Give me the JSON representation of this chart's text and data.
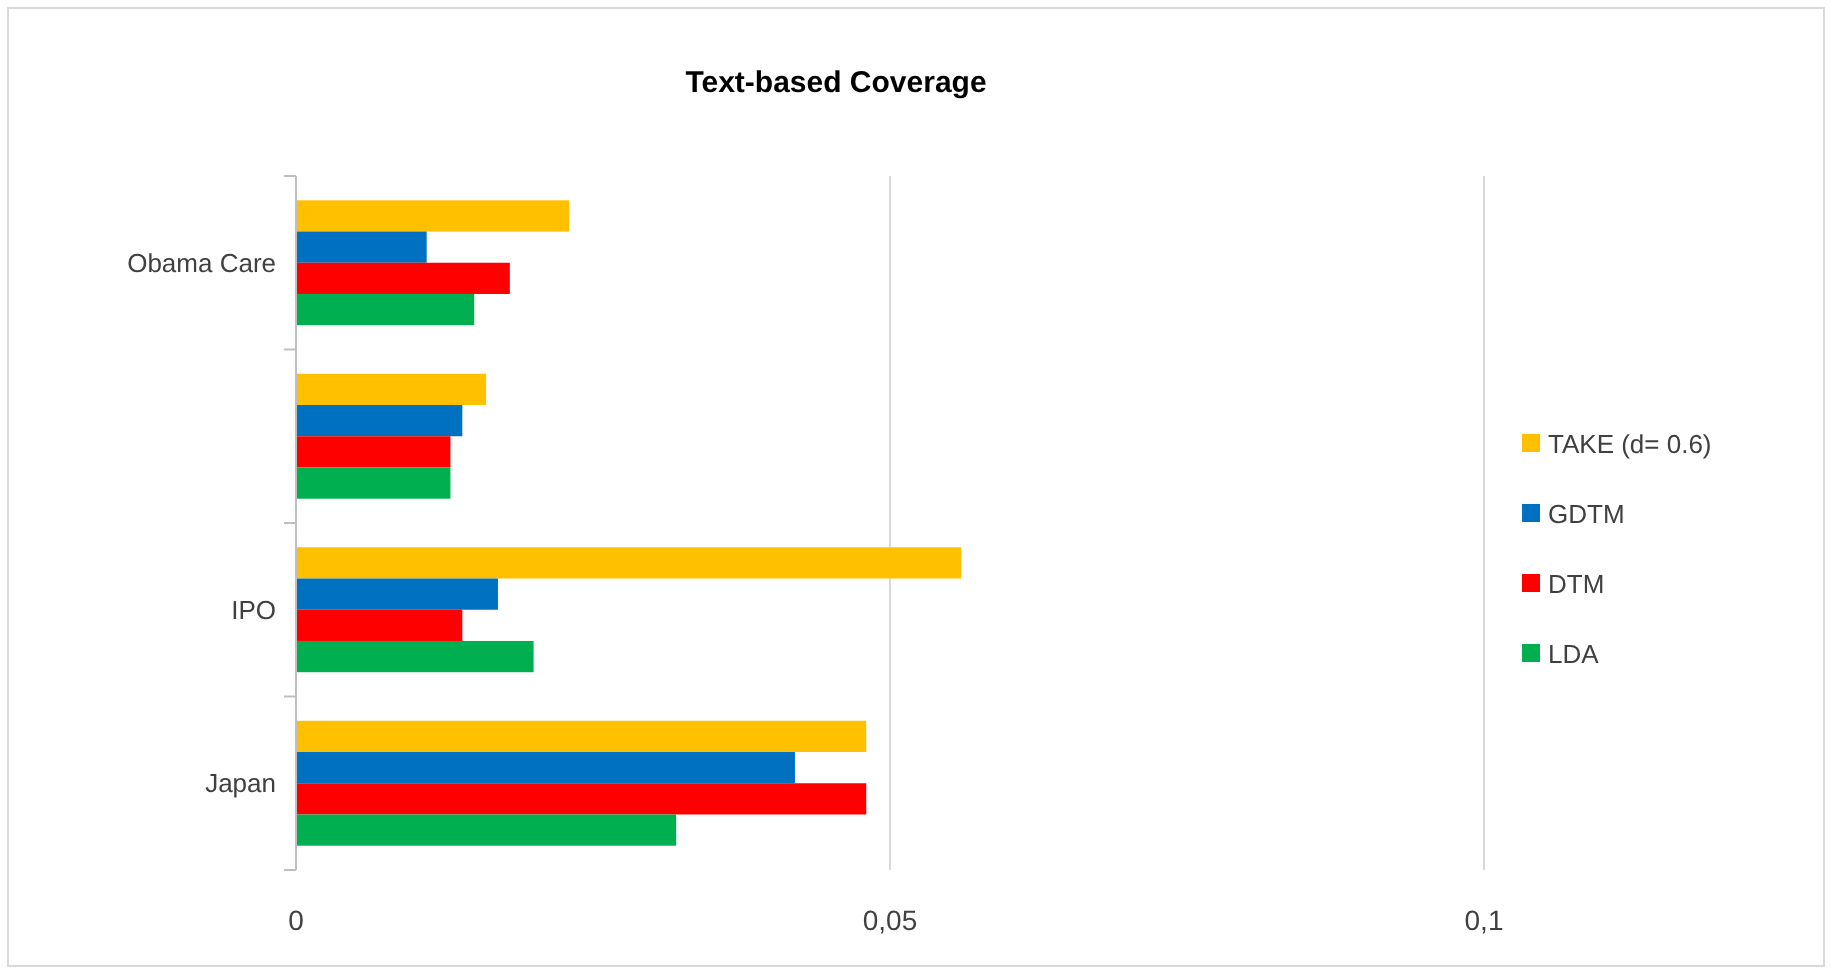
{
  "chart_data": {
    "type": "bar",
    "orientation": "horizontal",
    "title": "Text-based Coverage",
    "categories": [
      "Obama Care",
      null,
      "IPO",
      "Japan"
    ],
    "series": [
      {
        "name": "TAKE (d= 0.6)",
        "color": "#ffc000",
        "values": [
          0.023,
          0.016,
          0.056,
          0.048
        ]
      },
      {
        "name": "GDTM",
        "color": "#0070c0",
        "values": [
          0.011,
          0.014,
          0.017,
          0.042
        ]
      },
      {
        "name": "DTM",
        "color": "#ff0000",
        "values": [
          0.018,
          0.013,
          0.014,
          0.048
        ]
      },
      {
        "name": "LDA",
        "color": "#00b050",
        "values": [
          0.015,
          0.013,
          0.02,
          0.032
        ]
      }
    ],
    "xlim": [
      0,
      0.1
    ],
    "xticks": [
      {
        "value": 0,
        "label": "0"
      },
      {
        "value": 0.05,
        "label": "0,05"
      },
      {
        "value": 0.1,
        "label": "0,1"
      }
    ],
    "grid": "x",
    "legend": "right"
  }
}
